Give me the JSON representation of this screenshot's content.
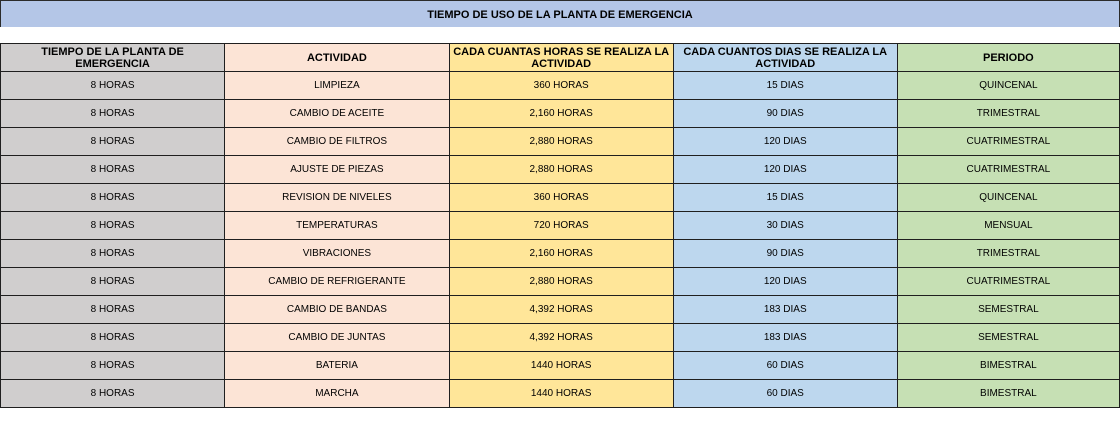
{
  "title": "TIEMPO DE USO DE LA PLANTA DE EMERGENCIA",
  "columns": [
    "TIEMPO DE LA PLANTA DE EMERGENCIA",
    "ACTIVIDAD",
    "CADA CUANTAS HORAS SE REALIZA LA ACTIVIDAD",
    "CADA CUANTOS DIAS SE REALIZA LA ACTIVIDAD",
    "PERIODO"
  ],
  "rows": [
    [
      "8 HORAS",
      "LIMPIEZA",
      "360 HORAS",
      "15 DIAS",
      "QUINCENAL"
    ],
    [
      "8 HORAS",
      "CAMBIO DE ACEITE",
      "2,160 HORAS",
      "90 DIAS",
      "TRIMESTRAL"
    ],
    [
      "8 HORAS",
      "CAMBIO DE FILTROS",
      "2,880 HORAS",
      "120 DIAS",
      "CUATRIMESTRAL"
    ],
    [
      "8 HORAS",
      "AJUSTE DE PIEZAS",
      "2,880 HORAS",
      "120 DIAS",
      "CUATRIMESTRAL"
    ],
    [
      "8 HORAS",
      "REVISION DE NIVELES",
      "360 HORAS",
      "15 DIAS",
      "QUINCENAL"
    ],
    [
      "8 HORAS",
      "TEMPERATURAS",
      "720 HORAS",
      "30 DIAS",
      "MENSUAL"
    ],
    [
      "8 HORAS",
      "VIBRACIONES",
      "2,160 HORAS",
      "90 DIAS",
      "TRIMESTRAL"
    ],
    [
      "8 HORAS",
      "CAMBIO DE REFRIGERANTE",
      "2,880 HORAS",
      "120 DIAS",
      "CUATRIMESTRAL"
    ],
    [
      "8 HORAS",
      "CAMBIO DE BANDAS",
      "4,392 HORAS",
      "183 DIAS",
      "SEMESTRAL"
    ],
    [
      "8 HORAS",
      "CAMBIO DE JUNTAS",
      "4,392 HORAS",
      "183 DIAS",
      "SEMESTRAL"
    ],
    [
      "8 HORAS",
      "BATERIA",
      "1440 HORAS",
      "60 DIAS",
      "BIMESTRAL"
    ],
    [
      "8 HORAS",
      "MARCHA",
      "1440 HORAS",
      "60 DIAS",
      "BIMESTRAL"
    ]
  ],
  "colors": {
    "title_bg": "#b4c6e7",
    "col_time": "#d0cece",
    "col_activity": "#fce4d6",
    "col_hours": "#ffe699",
    "col_days": "#bdd7ee",
    "col_period": "#c6e0b4"
  }
}
